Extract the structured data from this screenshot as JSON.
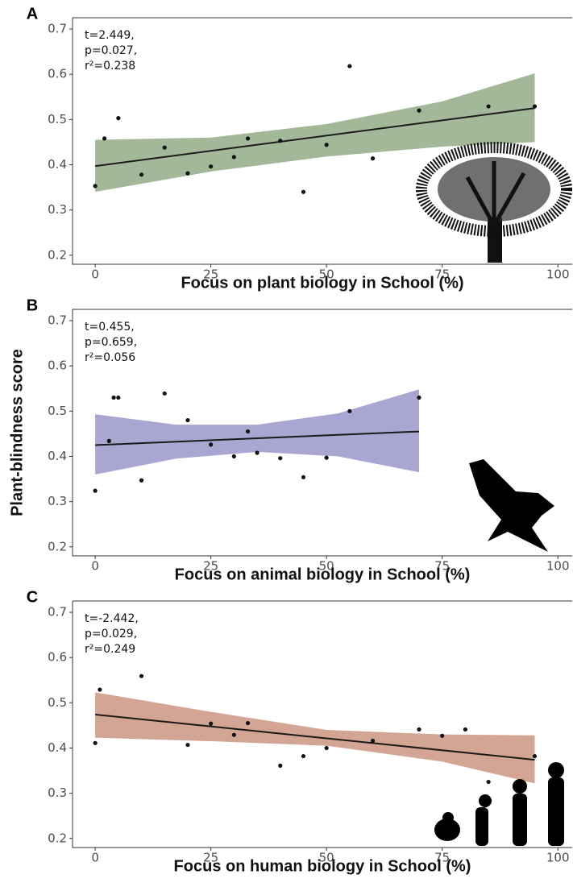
{
  "chart_data": [
    {
      "type": "scatter",
      "panel": "A",
      "xlabel": "Focus on plant biology in School (%)",
      "annotation": [
        "t=2.449,",
        "p=0.027,",
        "r²=0.238"
      ],
      "x": [
        0,
        2,
        5,
        10,
        15,
        20,
        25,
        30,
        33,
        40,
        45,
        50,
        55,
        60,
        70,
        85,
        95
      ],
      "y": [
        0.353,
        0.458,
        0.503,
        0.378,
        0.438,
        0.381,
        0.396,
        0.417,
        0.458,
        0.453,
        0.34,
        0.444,
        0.618,
        0.414,
        0.52,
        0.529,
        0.529
      ],
      "fit": {
        "x": [
          0,
          95
        ],
        "y": [
          0.397,
          0.525
        ]
      },
      "ci": {
        "x": [
          0,
          25,
          50,
          75,
          95
        ],
        "lower": [
          0.34,
          0.385,
          0.418,
          0.44,
          0.45
        ],
        "upper": [
          0.455,
          0.46,
          0.49,
          0.54,
          0.602
        ]
      },
      "band_color": "#a3b899",
      "point_color": "#111111",
      "line_color": "#1a1a1a",
      "xlim": [
        -4.9,
        103.1
      ],
      "ylim": [
        0.18,
        0.725
      ],
      "xticks": [
        0,
        25,
        50,
        75,
        100
      ],
      "yticks": [
        0.2,
        0.3,
        0.4,
        0.5,
        0.6,
        0.7
      ]
    },
    {
      "type": "scatter",
      "panel": "B",
      "xlabel": "Focus on animal biology in School (%)",
      "ylabel": "Plant-blindness score",
      "annotation": [
        "t=0.455,",
        "p=0.659,",
        "r²=0.056"
      ],
      "x": [
        0,
        3,
        4,
        5,
        10,
        15,
        20,
        25,
        30,
        33,
        35,
        40,
        45,
        50,
        55,
        70
      ],
      "y": [
        0.324,
        0.434,
        0.53,
        0.53,
        0.347,
        0.539,
        0.48,
        0.426,
        0.4,
        0.455,
        0.408,
        0.396,
        0.354,
        0.397,
        0.5,
        0.53
      ],
      "fit": {
        "x": [
          0,
          70
        ],
        "y": [
          0.425,
          0.455
        ]
      },
      "ci": {
        "x": [
          0,
          17.5,
          35,
          52.5,
          70
        ],
        "lower": [
          0.36,
          0.395,
          0.41,
          0.4,
          0.365
        ],
        "upper": [
          0.493,
          0.47,
          0.47,
          0.495,
          0.548
        ]
      },
      "band_color": "#a9a6d1",
      "point_color": "#111111",
      "line_color": "#1a1a1a",
      "xlim": [
        -4.9,
        103.1
      ],
      "ylim": [
        0.18,
        0.725
      ],
      "xticks": [
        0,
        25,
        50,
        75,
        100
      ],
      "yticks": [
        0.2,
        0.3,
        0.4,
        0.5,
        0.6,
        0.7
      ]
    },
    {
      "type": "scatter",
      "panel": "C",
      "xlabel": "Focus on human biology in School (%)",
      "annotation": [
        "t=-2.442,",
        "p=0.029,",
        "r²=0.249"
      ],
      "x": [
        0,
        1,
        10,
        20,
        25,
        30,
        33,
        40,
        45,
        50,
        60,
        70,
        75,
        80,
        85,
        95
      ],
      "y": [
        0.411,
        0.529,
        0.559,
        0.407,
        0.454,
        0.429,
        0.455,
        0.361,
        0.382,
        0.4,
        0.416,
        0.441,
        0.427,
        0.441,
        0.325,
        0.382
      ],
      "fit": {
        "x": [
          0,
          95
        ],
        "y": [
          0.474,
          0.374
        ]
      },
      "ci": {
        "x": [
          0,
          25,
          50,
          75,
          95
        ],
        "lower": [
          0.423,
          0.415,
          0.405,
          0.37,
          0.322
        ],
        "upper": [
          0.523,
          0.48,
          0.44,
          0.43,
          0.428
        ]
      },
      "band_color": "#d3a594",
      "point_color": "#111111",
      "line_color": "#1a1a1a",
      "xlim": [
        -4.9,
        103.1
      ],
      "ylim": [
        0.18,
        0.725
      ],
      "xticks": [
        0,
        25,
        50,
        75,
        100
      ],
      "yticks": [
        0.2,
        0.3,
        0.4,
        0.5,
        0.6,
        0.7
      ]
    }
  ]
}
